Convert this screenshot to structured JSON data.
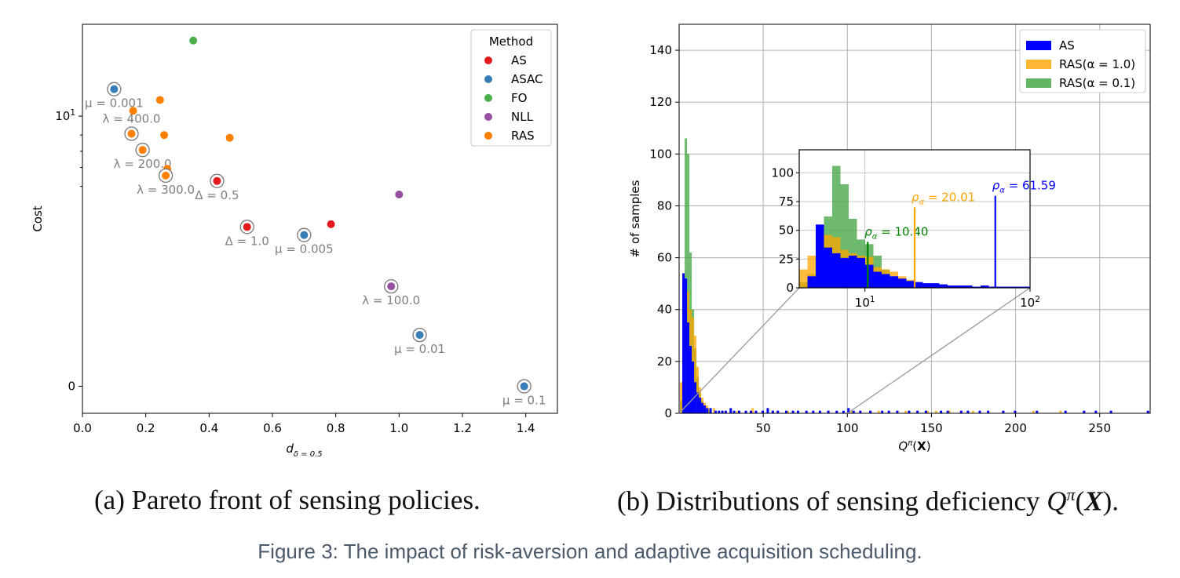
{
  "chart_data": [
    {
      "type": "scatter",
      "panel": "a",
      "caption": "(a) Pareto front of sensing policies.",
      "xlabel": "d_{δ=0.5}",
      "xlabel_main": "d",
      "xlabel_sub": "δ = 0.5",
      "ylabel": "Cost",
      "xlim": [
        0.0,
        1.5
      ],
      "xticks": [
        "0.0",
        "0.2",
        "0.4",
        "0.6",
        "0.8",
        "1.0",
        "1.2",
        "1.4"
      ],
      "yticks": [
        {
          "label": "10",
          "sup": "1"
        },
        {
          "label": "0"
        }
      ],
      "ylim": [
        -0.1,
        1.34
      ],
      "legend": {
        "title": "Method",
        "position": "top-right",
        "entries": [
          {
            "label": "AS",
            "color": "#e41a1c"
          },
          {
            "label": "ASAC",
            "color": "#377eb8"
          },
          {
            "label": "FO",
            "color": "#4daf4a"
          },
          {
            "label": "NLL",
            "color": "#984ea3"
          },
          {
            "label": "RAS",
            "color": "#ff7f00"
          }
        ]
      },
      "points": [
        {
          "method": "FO",
          "x": 0.35,
          "y": 1.28,
          "highlighted": false
        },
        {
          "method": "ASAC",
          "x": 0.1,
          "y": 1.1,
          "highlighted": true,
          "annotation": "μ = 0.001",
          "anchor": "below"
        },
        {
          "method": "ASAC",
          "x": 0.7,
          "y": 0.56,
          "highlighted": true,
          "annotation": "μ = 0.005",
          "anchor": "below"
        },
        {
          "method": "ASAC",
          "x": 1.065,
          "y": 0.19,
          "highlighted": true,
          "annotation": "μ = 0.01",
          "anchor": "below"
        },
        {
          "method": "ASAC",
          "x": 1.395,
          "y": 0.0,
          "highlighted": true,
          "annotation": "μ = 0.1",
          "anchor": "below"
        },
        {
          "method": "AS",
          "x": 0.785,
          "y": 0.6,
          "highlighted": false
        },
        {
          "method": "AS",
          "x": 0.425,
          "y": 0.76,
          "highlighted": true,
          "annotation": "Δ = 0.5",
          "anchor": "below"
        },
        {
          "method": "AS",
          "x": 0.52,
          "y": 0.59,
          "highlighted": true,
          "annotation": "Δ = 1.0",
          "anchor": "below"
        },
        {
          "method": "NLL",
          "x": 1.0,
          "y": 0.71,
          "highlighted": false
        },
        {
          "method": "NLL",
          "x": 0.975,
          "y": 0.37,
          "highlighted": true,
          "annotation": "λ = 100.0",
          "anchor": "below"
        },
        {
          "method": "RAS",
          "x": 0.16,
          "y": 1.02,
          "highlighted": false
        },
        {
          "method": "RAS",
          "x": 0.245,
          "y": 1.06,
          "highlighted": false
        },
        {
          "method": "RAS",
          "x": 0.155,
          "y": 0.935,
          "highlighted": true,
          "annotation": "λ = 400.0",
          "anchor": "above"
        },
        {
          "method": "RAS",
          "x": 0.258,
          "y": 0.93,
          "highlighted": false
        },
        {
          "method": "RAS",
          "x": 0.465,
          "y": 0.92,
          "highlighted": false
        },
        {
          "method": "RAS",
          "x": 0.19,
          "y": 0.875,
          "highlighted": true,
          "annotation": "λ = 200.0",
          "anchor": "below"
        },
        {
          "method": "RAS",
          "x": 0.268,
          "y": 0.805,
          "highlighted": false
        },
        {
          "method": "RAS",
          "x": 0.263,
          "y": 0.78,
          "highlighted": true,
          "annotation": "λ = 300.0",
          "anchor": "below"
        }
      ]
    },
    {
      "type": "histogram",
      "panel": "b",
      "caption": "(b) Distributions of sensing deficiency Q^π(X).",
      "xlabel": "Q^π(X)",
      "ylabel": "# of samples",
      "xlim": [
        0,
        280
      ],
      "ylim": [
        0,
        150
      ],
      "xticks": [
        50,
        100,
        150,
        200,
        250
      ],
      "yticks": [
        0,
        20,
        40,
        60,
        80,
        100,
        120,
        140
      ],
      "grid": true,
      "legend": {
        "position": "top-right",
        "entries": [
          {
            "label": "AS",
            "color": "#0000ff"
          },
          {
            "label": "RAS(α = 1.0)",
            "color": "#ffa500"
          },
          {
            "label": "RAS(α = 0.1)",
            "color": "#3ca23c"
          }
        ]
      },
      "main_bin_width": 1.4,
      "series": [
        {
          "name": "RAS(α = 0.1)",
          "color": "#3ca23c",
          "opacity": 0.75,
          "bins": [
            [
              0.5,
              5
            ],
            [
              1.9,
              50
            ],
            [
              3.3,
              106
            ],
            [
              4.7,
              100
            ],
            [
              6.1,
              62
            ],
            [
              7.5,
              40
            ],
            [
              8.9,
              25
            ],
            [
              10.3,
              14
            ],
            [
              11.7,
              8
            ],
            [
              13.1,
              5
            ],
            [
              14.5,
              3
            ],
            [
              15.9,
              2
            ],
            [
              17.3,
              1
            ]
          ]
        },
        {
          "name": "RAS(α = 1.0)",
          "color": "#ffa500",
          "opacity": 0.75,
          "bins": [
            [
              0.5,
              12
            ],
            [
              1.9,
              42
            ],
            [
              3.3,
              48
            ],
            [
              4.7,
              47
            ],
            [
              6.1,
              40
            ],
            [
              7.5,
              37
            ],
            [
              8.9,
              30
            ],
            [
              10.3,
              18
            ],
            [
              11.7,
              10
            ],
            [
              13.1,
              6
            ],
            [
              14.5,
              4
            ],
            [
              15.9,
              3
            ],
            [
              17.3,
              2
            ],
            [
              20,
              2
            ],
            [
              25,
              1
            ],
            [
              34,
              1
            ],
            [
              43,
              2
            ],
            [
              55,
              1
            ],
            [
              64,
              1
            ],
            [
              88,
              1
            ],
            [
              102,
              1
            ],
            [
              118,
              1
            ],
            [
              134,
              1
            ],
            [
              147,
              1
            ],
            [
              152,
              1
            ],
            [
              160,
              1
            ],
            [
              174,
              1
            ],
            [
              210,
              1
            ],
            [
              226,
              1
            ]
          ]
        },
        {
          "name": "AS",
          "color": "#0000ff",
          "opacity": 1.0,
          "bins": [
            [
              1.9,
              54
            ],
            [
              3.3,
              52
            ],
            [
              4.7,
              35
            ],
            [
              6.1,
              26
            ],
            [
              7.5,
              20
            ],
            [
              8.9,
              12
            ],
            [
              10.3,
              8
            ],
            [
              11.7,
              6
            ],
            [
              13.1,
              4
            ],
            [
              14.5,
              3
            ],
            [
              16,
              2
            ],
            [
              18,
              2
            ],
            [
              21,
              1
            ],
            [
              23,
              1
            ],
            [
              25,
              1
            ],
            [
              27,
              1
            ],
            [
              30,
              2
            ],
            [
              32,
              1
            ],
            [
              35,
              1
            ],
            [
              39,
              1
            ],
            [
              42,
              1
            ],
            [
              45,
              1
            ],
            [
              49,
              1
            ],
            [
              52,
              2
            ],
            [
              55,
              1
            ],
            [
              58,
              1
            ],
            [
              63,
              1
            ],
            [
              67,
              1
            ],
            [
              70,
              1
            ],
            [
              75,
              1
            ],
            [
              79,
              1
            ],
            [
              83,
              1
            ],
            [
              88,
              1
            ],
            [
              93,
              1
            ],
            [
              97,
              1
            ],
            [
              100,
              2
            ],
            [
              103,
              1
            ],
            [
              107,
              1
            ],
            [
              113,
              1
            ],
            [
              120,
              1
            ],
            [
              124,
              1
            ],
            [
              129,
              1
            ],
            [
              136,
              1
            ],
            [
              141,
              1
            ],
            [
              146,
              1
            ],
            [
              155,
              1
            ],
            [
              159,
              1
            ],
            [
              167,
              1
            ],
            [
              171,
              1
            ],
            [
              178,
              1
            ],
            [
              183,
              1
            ],
            [
              192,
              1
            ],
            [
              199,
              1
            ],
            [
              212,
              1
            ],
            [
              229,
              1
            ],
            [
              240,
              1
            ],
            [
              247,
              1
            ],
            [
              256,
              1
            ],
            [
              278,
              1
            ]
          ]
        }
      ],
      "inset": {
        "xscale": "log",
        "xlim": [
          4,
          100
        ],
        "ylim": [
          0,
          120
        ],
        "xticks": [
          {
            "value": 10,
            "label": "10",
            "sup": "1"
          },
          {
            "value": 100,
            "label": "10",
            "sup": "2"
          }
        ],
        "yticks": [
          0,
          25,
          50,
          75,
          100
        ],
        "zoom_region": {
          "x": [
            0,
            100
          ],
          "y": [
            0,
            0
          ]
        },
        "series": [
          {
            "name": "RAS(α = 0.1)",
            "color": "#3ca23c",
            "opacity": 0.75,
            "values": [
              5,
              12,
              38,
              62,
              106,
              90,
              60,
              42,
              38,
              28,
              16,
              10,
              6,
              4,
              3,
              2,
              1,
              1,
              0,
              0,
              0,
              0,
              0,
              0,
              0,
              0,
              0,
              0
            ]
          },
          {
            "name": "RAS(α = 1.0)",
            "color": "#ffa500",
            "opacity": 0.75,
            "values": [
              16,
              28,
              48,
              46,
              44,
              33,
              30,
              28,
              27,
              18,
              16,
              14,
              10,
              7,
              5,
              3,
              3,
              2,
              2,
              2,
              1,
              1,
              1,
              0,
              1,
              0,
              0,
              0
            ]
          },
          {
            "name": "AS",
            "color": "#0000ff",
            "opacity": 1.0,
            "values": [
              0,
              10,
              55,
              35,
              30,
              26,
              28,
              26,
              20,
              14,
              12,
              10,
              8,
              6,
              5,
              4,
              4,
              3,
              2,
              2,
              2,
              1,
              2,
              1,
              1,
              1,
              1,
              1
            ]
          }
        ],
        "markers": [
          {
            "name": "RAS(α = 0.1)",
            "value": 10.4,
            "label": "ρ_α = 10.40",
            "label_sym": "ρ",
            "label_sub": "α",
            "label_val": " = 10.40",
            "color": "#008000",
            "height": 40
          },
          {
            "name": "RAS(α = 1.0)",
            "value": 20.01,
            "label": "ρ_α = 20.01",
            "label_sym": "ρ",
            "label_sub": "α",
            "label_val": " = 20.01",
            "color": "#ffa500",
            "height": 70
          },
          {
            "name": "AS",
            "value": 61.59,
            "label": "ρ_α = 61.59",
            "label_sym": "ρ",
            "label_sub": "α",
            "label_val": " = 61.59",
            "color": "#0000ff",
            "height": 80
          }
        ]
      }
    }
  ],
  "captions": {
    "a": "(a) Pareto front of sensing policies.",
    "b_prefix": "(b) Distributions of sensing deficiency ",
    "b_math_q": "Q",
    "b_math_pi": "π",
    "b_math_x": "X",
    "b_suffix": ").",
    "figure": "Figure 3: The impact of risk-aversion and adaptive acquisition scheduling."
  }
}
